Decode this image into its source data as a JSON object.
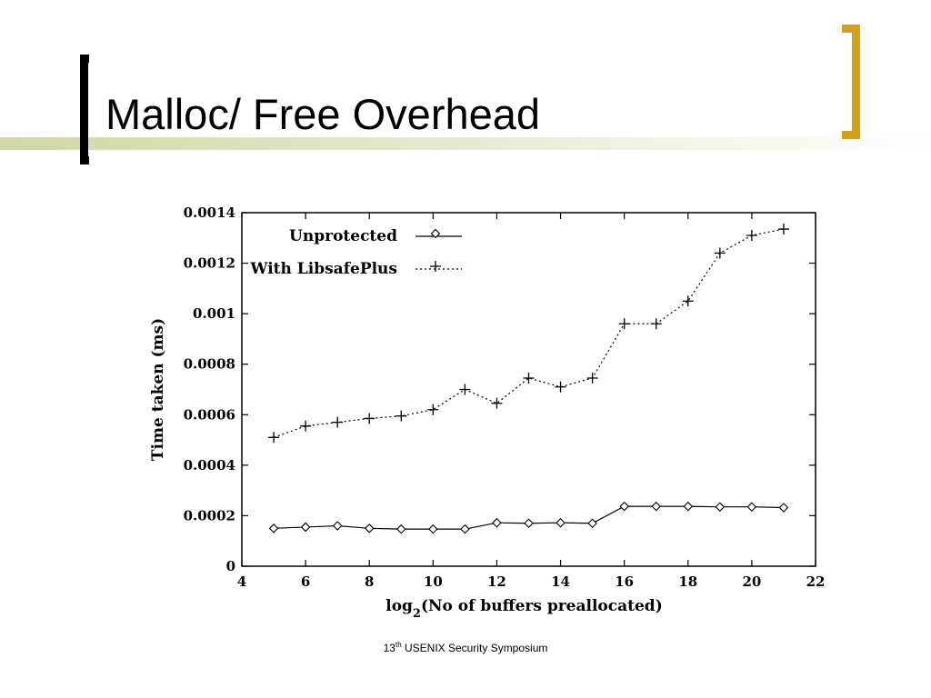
{
  "slide": {
    "title": "Malloc/ Free Overhead",
    "footer": {
      "prefix": "13",
      "sup": "th",
      "suffix": " USENIX Security Symposium"
    },
    "colors": {
      "accent_bracket": "#d4a017",
      "title_band": "#d3d6a6"
    }
  },
  "chart_data": {
    "type": "line",
    "title": "",
    "xlabel": {
      "prefix": "log",
      "sub": "2",
      "suffix": "(No of buffers preallocated)"
    },
    "ylabel": "Time taken (ms)",
    "xlim": [
      4,
      22
    ],
    "ylim": [
      0,
      0.0014
    ],
    "x_ticks": [
      4,
      6,
      8,
      10,
      12,
      14,
      16,
      18,
      20,
      22
    ],
    "y_ticks": [
      0,
      0.0002,
      0.0004,
      0.0006,
      0.0008,
      0.001,
      0.0012,
      0.0014
    ],
    "y_tick_labels": [
      "0",
      "0.0002",
      "0.0004",
      "0.0006",
      "0.0008",
      "0.001",
      "0.0012",
      "0.0014"
    ],
    "legend_position": "top-left",
    "grid": false,
    "x": [
      5,
      6,
      7,
      8,
      9,
      10,
      11,
      12,
      13,
      14,
      15,
      16,
      17,
      18,
      19,
      20,
      21
    ],
    "series": [
      {
        "name": "Unprotected",
        "marker": "diamond",
        "line": "solid",
        "values": [
          0.00015,
          0.000155,
          0.00016,
          0.00015,
          0.000147,
          0.000147,
          0.000147,
          0.000172,
          0.00017,
          0.000172,
          0.00017,
          0.000237,
          0.000237,
          0.000237,
          0.000235,
          0.000235,
          0.000232
        ]
      },
      {
        "name": "With LibsafePlus",
        "marker": "plus",
        "line": "dotted",
        "values": [
          0.00051,
          0.000555,
          0.00057,
          0.000585,
          0.000595,
          0.00062,
          0.0007,
          0.000645,
          0.000745,
          0.00071,
          0.000745,
          0.00096,
          0.00096,
          0.00105,
          0.00124,
          0.00131,
          0.001335
        ]
      }
    ]
  }
}
